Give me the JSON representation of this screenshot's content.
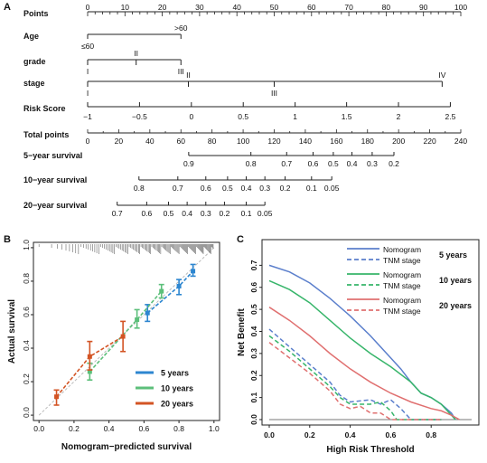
{
  "panel_labels": {
    "a": "A",
    "b": "B",
    "c": "C"
  },
  "nomogram": {
    "rows": [
      {
        "name": "Points",
        "ticks": [
          {
            "label": "0",
            "v": 0
          },
          {
            "label": "10",
            "v": 10
          },
          {
            "label": "20",
            "v": 20
          },
          {
            "label": "30",
            "v": 30
          },
          {
            "label": "40",
            "v": 40
          },
          {
            "label": "50",
            "v": 50
          },
          {
            "label": "60",
            "v": 60
          },
          {
            "label": "70",
            "v": 70
          },
          {
            "label": "80",
            "v": 80
          },
          {
            "label": "90",
            "v": 90
          },
          {
            "label": "100",
            "v": 100
          }
        ]
      },
      {
        "name": "Age",
        "ticks": [
          {
            "label": "≤60",
            "v": 0
          },
          {
            "label": ">60",
            "v": 25
          }
        ]
      },
      {
        "name": "grade",
        "ticks": [
          {
            "label": "I",
            "v": 0
          },
          {
            "label": "II",
            "v": 13
          },
          {
            "label": "III",
            "v": 25
          }
        ]
      },
      {
        "name": "stage",
        "ticks": [
          {
            "label": "I",
            "v": 0
          },
          {
            "label": "II",
            "v": 27
          },
          {
            "label": "III",
            "v": 50
          },
          {
            "label": "IV",
            "v": 95
          }
        ]
      },
      {
        "name": "Risk Score",
        "ticks": [
          {
            "label": "−1",
            "v": 0
          },
          {
            "label": "−0.5",
            "v": 13.9
          },
          {
            "label": "0",
            "v": 27.8
          },
          {
            "label": "0.5",
            "v": 41.7
          },
          {
            "label": "1",
            "v": 55.6
          },
          {
            "label": "1.5",
            "v": 69.4
          },
          {
            "label": "2",
            "v": 83.3
          },
          {
            "label": "2.5",
            "v": 97.2
          }
        ]
      },
      {
        "name": "Total points",
        "ticks": [
          {
            "label": "0",
            "v": 0
          },
          {
            "label": "20",
            "v": 20
          },
          {
            "label": "40",
            "v": 40
          },
          {
            "label": "60",
            "v": 60
          },
          {
            "label": "80",
            "v": 80
          },
          {
            "label": "100",
            "v": 100
          },
          {
            "label": "120",
            "v": 120
          },
          {
            "label": "140",
            "v": 140
          },
          {
            "label": "160",
            "v": 160
          },
          {
            "label": "180",
            "v": 180
          },
          {
            "label": "200",
            "v": 200
          },
          {
            "label": "220",
            "v": 220
          },
          {
            "label": "240",
            "v": 240
          }
        ]
      },
      {
        "name": "5−year survival",
        "ticks": [
          {
            "label": "0.9",
            "v": 65
          },
          {
            "label": "0.8",
            "v": 105
          },
          {
            "label": "0.7",
            "v": 128
          },
          {
            "label": "0.6",
            "v": 145
          },
          {
            "label": "0.5",
            "v": 158
          },
          {
            "label": "0.4",
            "v": 170
          },
          {
            "label": "0.3",
            "v": 183
          },
          {
            "label": "0.2",
            "v": 197
          }
        ]
      },
      {
        "name": "10−year survival",
        "ticks": [
          {
            "label": "0.8",
            "v": 33
          },
          {
            "label": "0.7",
            "v": 58
          },
          {
            "label": "0.6",
            "v": 76
          },
          {
            "label": "0.5",
            "v": 90
          },
          {
            "label": "0.4",
            "v": 102
          },
          {
            "label": "0.3",
            "v": 114
          },
          {
            "label": "0.2",
            "v": 127
          },
          {
            "label": "0.1",
            "v": 144
          },
          {
            "label": "0.05",
            "v": 157
          }
        ]
      },
      {
        "name": "20−year survival",
        "ticks": [
          {
            "label": "0.7",
            "v": 19
          },
          {
            "label": "0.6",
            "v": 38
          },
          {
            "label": "0.5",
            "v": 52
          },
          {
            "label": "0.4",
            "v": 64
          },
          {
            "label": "0.3",
            "v": 76
          },
          {
            "label": "0.2",
            "v": 88
          },
          {
            "label": "0.1",
            "v": 102
          },
          {
            "label": "0.05",
            "v": 114
          }
        ]
      }
    ]
  },
  "chart_data": [
    {
      "type": "line",
      "xlabel": "Nomogram−predicted survival",
      "ylabel": "Actual survival",
      "xlim": [
        0,
        1
      ],
      "ylim": [
        0,
        1
      ],
      "xticks": [
        "0.0",
        "0.2",
        "0.4",
        "0.6",
        "0.8",
        "1.0"
      ],
      "yticks": [
        "0.0",
        "0.2",
        "0.4",
        "0.6",
        "0.8",
        "1.0"
      ],
      "legend_position": "bottom-right",
      "series": [
        {
          "name": "5 years",
          "color": "#2d86d0",
          "x": [
            0.62,
            0.8,
            0.88
          ],
          "y": [
            0.61,
            0.77,
            0.86
          ],
          "err_lo": [
            0.56,
            0.72,
            0.83
          ],
          "err_hi": [
            0.66,
            0.81,
            0.9
          ]
        },
        {
          "name": "10 years",
          "color": "#5cbf7a",
          "x": [
            0.29,
            0.56,
            0.7
          ],
          "y": [
            0.26,
            0.57,
            0.74
          ],
          "err_lo": [
            0.21,
            0.52,
            0.7
          ],
          "err_hi": [
            0.31,
            0.63,
            0.78
          ]
        },
        {
          "name": "20 years",
          "color": "#d35424",
          "x": [
            0.1,
            0.29,
            0.48
          ],
          "y": [
            0.11,
            0.35,
            0.47
          ],
          "err_lo": [
            0.06,
            0.27,
            0.38
          ],
          "err_hi": [
            0.15,
            0.44,
            0.56
          ]
        }
      ]
    },
    {
      "type": "line",
      "xlabel": "High Risk Threshold",
      "ylabel": "Net Benefit",
      "xlim": [
        0,
        1
      ],
      "ylim": [
        0,
        0.8
      ],
      "xticks": [
        "0.0",
        "0.2",
        "0.4",
        "0.6",
        "0.8"
      ],
      "yticks": [
        "0.0",
        "0.1",
        "0.2",
        "0.3",
        "0.4",
        "0.5",
        "0.6",
        "0.7"
      ],
      "legend": {
        "nomogram": "Nomogram",
        "tnm": "TNM stage",
        "groups": [
          "5 years",
          "10 years",
          "20 years"
        ]
      },
      "series": [
        {
          "name": "Nomogram",
          "group": "5 years",
          "dash": false,
          "color": "#5b7fcc",
          "x": [
            0,
            0.1,
            0.2,
            0.3,
            0.4,
            0.5,
            0.6,
            0.65,
            0.7,
            0.75,
            0.8,
            0.85,
            0.9,
            0.92
          ],
          "y": [
            0.7,
            0.67,
            0.62,
            0.55,
            0.47,
            0.38,
            0.28,
            0.23,
            0.17,
            0.12,
            0.1,
            0.07,
            0.03,
            0.0
          ]
        },
        {
          "name": "TNM stage",
          "group": "5 years",
          "dash": true,
          "color": "#5b7fcc",
          "x": [
            0,
            0.1,
            0.2,
            0.3,
            0.35,
            0.4,
            0.5,
            0.55,
            0.6,
            0.65,
            0.7,
            0.72,
            0.85
          ],
          "y": [
            0.41,
            0.33,
            0.25,
            0.17,
            0.11,
            0.08,
            0.09,
            0.07,
            0.09,
            0.05,
            0.0,
            0.0,
            0.0
          ]
        },
        {
          "name": "Nomogram",
          "group": "10 years",
          "dash": false,
          "color": "#37b56a",
          "x": [
            0,
            0.1,
            0.2,
            0.3,
            0.4,
            0.5,
            0.6,
            0.7,
            0.75,
            0.8,
            0.85,
            0.9,
            0.92
          ],
          "y": [
            0.63,
            0.59,
            0.53,
            0.45,
            0.37,
            0.3,
            0.24,
            0.17,
            0.12,
            0.1,
            0.07,
            0.02,
            0.0
          ]
        },
        {
          "name": "TNM stage",
          "group": "10 years",
          "dash": true,
          "color": "#37b56a",
          "x": [
            0,
            0.1,
            0.2,
            0.3,
            0.35,
            0.4,
            0.5,
            0.55,
            0.6,
            0.63,
            0.85
          ],
          "y": [
            0.38,
            0.31,
            0.23,
            0.15,
            0.1,
            0.07,
            0.07,
            0.08,
            0.04,
            0.0,
            0.0
          ]
        },
        {
          "name": "Nomogram",
          "group": "20 years",
          "dash": false,
          "color": "#e07070",
          "x": [
            0,
            0.1,
            0.2,
            0.3,
            0.4,
            0.5,
            0.6,
            0.7,
            0.8,
            0.85,
            0.9,
            0.94
          ],
          "y": [
            0.51,
            0.45,
            0.38,
            0.3,
            0.23,
            0.17,
            0.12,
            0.08,
            0.05,
            0.04,
            0.02,
            0.0
          ]
        },
        {
          "name": "TNM stage",
          "group": "20 years",
          "dash": true,
          "color": "#e07070",
          "x": [
            0,
            0.1,
            0.2,
            0.3,
            0.35,
            0.4,
            0.45,
            0.5,
            0.55,
            0.6,
            0.85
          ],
          "y": [
            0.35,
            0.28,
            0.21,
            0.13,
            0.07,
            0.05,
            0.06,
            0.03,
            0.03,
            0.0,
            0.0
          ]
        }
      ]
    }
  ]
}
